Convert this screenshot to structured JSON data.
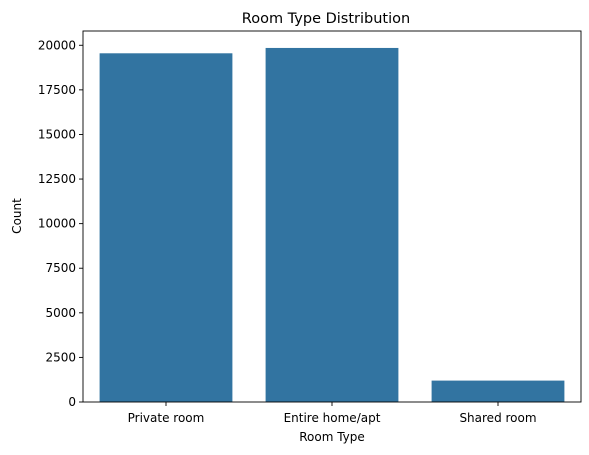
{
  "chart_data": {
    "type": "bar",
    "title": "Room Type Distribution",
    "xlabel": "Room Type",
    "ylabel": "Count",
    "categories": [
      "Private room",
      "Entire home/apt",
      "Shared room"
    ],
    "values": [
      19550,
      19850,
      1200
    ],
    "ylim": [
      0,
      20800
    ],
    "yticks": [
      0,
      2500,
      5000,
      7500,
      10000,
      12500,
      15000,
      17500,
      20000
    ],
    "bar_color": "#3274a1",
    "grid": false,
    "legend": "none"
  }
}
